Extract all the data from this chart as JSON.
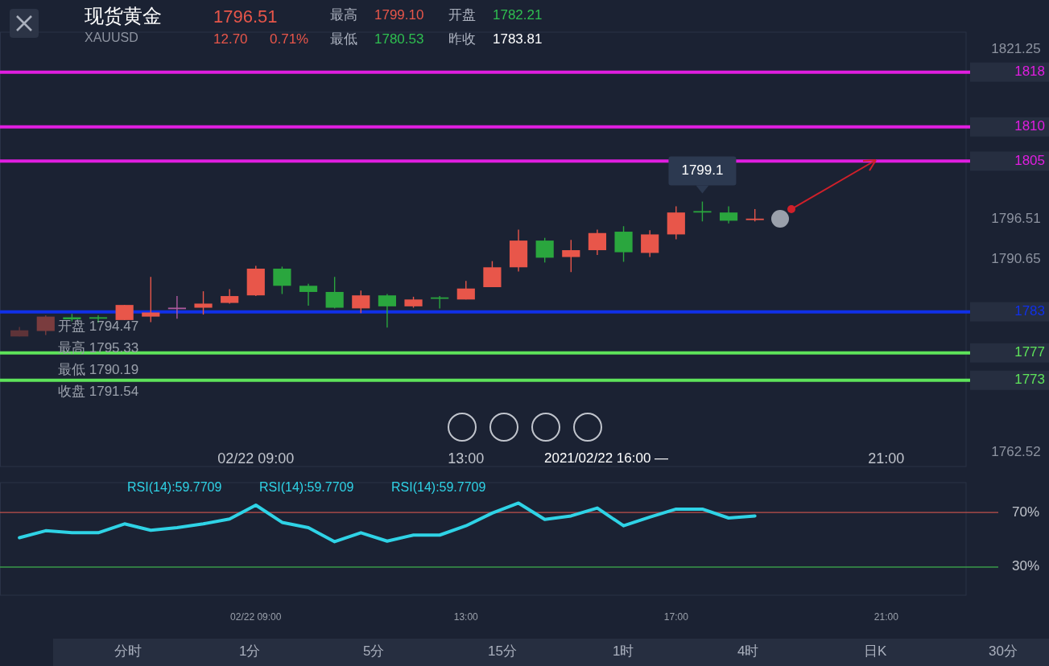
{
  "chart_data": [
    {
      "type": "candlestick",
      "title": "现货黄金",
      "subtitle": "XAUUSD",
      "x": [
        4.5,
        5,
        5.5,
        6,
        6.5,
        7,
        7.5,
        8,
        8.5,
        9,
        9.5,
        10,
        10.5,
        11,
        11.5,
        12,
        12.5,
        13,
        13.5,
        14,
        14.5,
        15,
        15.5,
        16,
        16.5,
        17,
        17.5,
        18,
        18.5
      ],
      "ohlc": [
        [
          1779.4,
          1780.8,
          1779.4,
          1780.3
        ],
        [
          1780.2,
          1782.5,
          1779.6,
          1782.3
        ],
        [
          1782.2,
          1782.7,
          1781.6,
          1781.9
        ],
        [
          1782.1,
          1782.5,
          1781.4,
          1782.0
        ],
        [
          1781.8,
          1784.0,
          1781.8,
          1784.0
        ],
        [
          1782.3,
          1788.1,
          1781.5,
          1782.9
        ],
        [
          1783.5,
          1785.3,
          1782.0,
          1783.5
        ],
        [
          1783.6,
          1786.0,
          1782.6,
          1784.2
        ],
        [
          1784.3,
          1786.3,
          1784.2,
          1785.3
        ],
        [
          1785.4,
          1789.7,
          1785.3,
          1789.3
        ],
        [
          1789.3,
          1789.6,
          1785.6,
          1786.8
        ],
        [
          1786.8,
          1787.1,
          1783.9,
          1785.9
        ],
        [
          1785.9,
          1788.1,
          1783.5,
          1783.6
        ],
        [
          1783.5,
          1786.1,
          1782.8,
          1785.4
        ],
        [
          1785.4,
          1785.6,
          1780.7,
          1783.8
        ],
        [
          1783.8,
          1785.2,
          1783.6,
          1784.8
        ],
        [
          1785.0,
          1785.3,
          1783.5,
          1785.0
        ],
        [
          1784.8,
          1787.5,
          1784.8,
          1786.4
        ],
        [
          1786.6,
          1790.4,
          1786.6,
          1789.5
        ],
        [
          1789.5,
          1795.0,
          1788.9,
          1793.4
        ],
        [
          1793.4,
          1793.8,
          1790.2,
          1790.9
        ],
        [
          1791.0,
          1793.5,
          1788.8,
          1792.0
        ],
        [
          1792.0,
          1795.0,
          1791.3,
          1794.5
        ],
        [
          1794.7,
          1795.5,
          1790.3,
          1791.7
        ],
        [
          1791.6,
          1794.9,
          1791.0,
          1794.3
        ],
        [
          1794.3,
          1798.4,
          1793.6,
          1797.5
        ],
        [
          1797.6,
          1799.1,
          1796.2,
          1797.6
        ],
        [
          1797.5,
          1798.4,
          1795.9,
          1796.3
        ],
        [
          1796.5,
          1798.0,
          1796.2,
          1796.5
        ]
      ],
      "colors": [
        "#5e3338",
        "#7a3c3e",
        "#2aa63e",
        "#2aa63e",
        "#e8564a",
        "#e8564a",
        "#b05aa0",
        "#e8564a",
        "#e8564a",
        "#e8564a",
        "#2aa63e",
        "#2aa63e",
        "#2aa63e",
        "#e8564a",
        "#2aa63e",
        "#e8564a",
        "#2aa63e",
        "#e8564a",
        "#e8564a",
        "#e8564a",
        "#2aa63e",
        "#e8564a",
        "#e8564a",
        "#2aa63e",
        "#e8564a",
        "#e8564a",
        "#2aa63e",
        "#2aa63e",
        "#e8564a"
      ],
      "xlim": [
        4.13,
        22.52
      ],
      "xticks": [
        {
          "value": 9,
          "label": "02/22 09:00"
        },
        {
          "value": 13,
          "label": "13:00"
        },
        {
          "value": 21,
          "label": "21:00"
        }
      ],
      "ylim": [
        1760.41,
        1823.83
      ],
      "yticks": [
        1821.25,
        1796.51,
        1790.65,
        1762.52
      ],
      "ref_lines": [
        {
          "axis": "y",
          "value": 1818,
          "label": "1818",
          "color": "#e01ee0"
        },
        {
          "axis": "y",
          "value": 1810,
          "label": "1810",
          "color": "#e01ee0"
        },
        {
          "axis": "y",
          "value": 1805,
          "label": "1805",
          "color": "#e01ee0"
        },
        {
          "axis": "y",
          "value": 1783,
          "label": "1783",
          "color": "#1030e8"
        },
        {
          "axis": "y",
          "value": 1777,
          "label": "1777",
          "color": "#5ee35a"
        },
        {
          "axis": "y",
          "value": 1773,
          "label": "1773",
          "color": "#5ee35a"
        }
      ],
      "annotations": [
        "1796.51",
        "12.70",
        "0.71%",
        "最高",
        "1799.10",
        "开盘",
        "1782.21",
        "最低",
        "1780.53",
        "昨收",
        "1783.81",
        "开盘 1794.47",
        "最高 1795.33",
        "最低 1790.19",
        "收盘 1791.54",
        "2021/02/22 16:00 —",
        {
          "text": "1799.1",
          "x": 17.5,
          "y": 1799.1
        }
      ]
    },
    {
      "type": "line",
      "x": [
        4.5,
        5,
        5.5,
        6,
        6.5,
        7,
        7.5,
        8,
        8.5,
        9,
        9.5,
        10,
        10.5,
        11,
        11.5,
        12,
        12.5,
        13,
        13.5,
        14,
        14.5,
        15,
        15.5,
        16,
        16.5,
        17,
        17.5,
        18,
        18.5
      ],
      "series": [
        {
          "color": "#2fd3e6",
          "values": [
            51.5,
            56.6,
            55.1,
            55.1,
            61.6,
            56.9,
            58.8,
            61.6,
            65.2,
            75.3,
            62.7,
            58.8,
            48.6,
            55.1,
            49.0,
            53.4,
            53.4,
            60.2,
            69.5,
            76.8,
            64.9,
            67.4,
            73.2,
            60.2,
            66.6,
            72.4,
            72.4,
            65.9,
            67.4
          ]
        }
      ],
      "xlim": [
        4.13,
        22.52
      ],
      "xticks": [
        {
          "value": 9,
          "label": "02/22 09:00"
        },
        {
          "value": 13,
          "label": "13:00"
        },
        {
          "value": 17,
          "label": "17:00"
        },
        {
          "value": 21,
          "label": "21:00"
        }
      ],
      "ylim": [
        9.4,
        91.8
      ],
      "yticks": [
        {
          "value": 70,
          "label": "70%"
        },
        {
          "value": 30,
          "label": "30%"
        }
      ],
      "ref_lines": [
        {
          "axis": "y",
          "value": 70,
          "color": "#c0504d"
        },
        {
          "axis": "y",
          "value": 30,
          "color": "#3a9a4a"
        }
      ],
      "annotations": [
        "RSI(14):59.7709",
        "RSI(14):59.7709",
        "RSI(14):59.7709",
        "分时",
        "1分",
        "5分",
        "15分",
        "1时",
        "4时",
        "日K",
        "30分"
      ]
    }
  ]
}
